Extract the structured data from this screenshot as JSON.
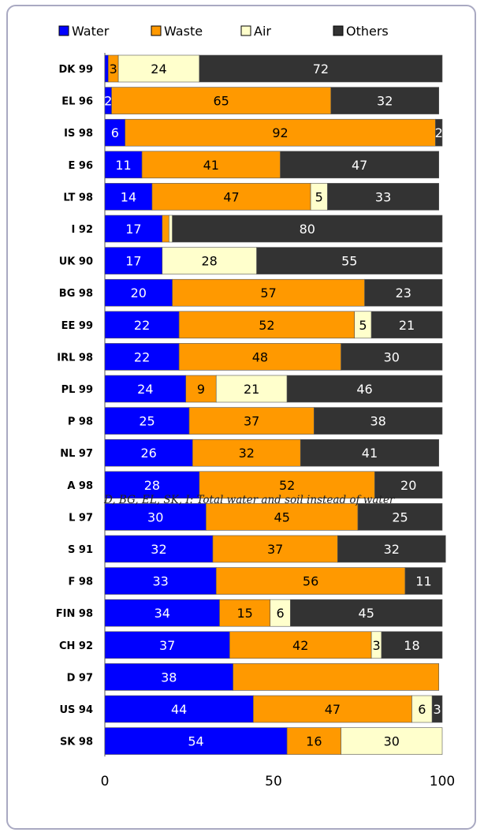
{
  "chart_data": {
    "type": "bar",
    "orientation": "horizontal",
    "stacked": true,
    "xlim": [
      0,
      100
    ],
    "xticks": [
      "0",
      "50",
      "100"
    ],
    "legend_placement": "top",
    "categories": [
      "DK 99",
      "EL 96",
      "IS 98",
      "E 96",
      "LT 98",
      "I 92",
      "UK 90",
      "BG 98",
      "EE 99",
      "IRL 98",
      "PL 99",
      "P 98",
      "NL 97",
      "A 98",
      "L 97",
      "S 91",
      "F 98",
      "FIN 98",
      "CH 92",
      "D 97",
      "US 94",
      "SK 98"
    ],
    "series": [
      {
        "name": "Water",
        "color": "#0000ff",
        "label_color": "#ffffff",
        "values": [
          1,
          2,
          6,
          11,
          14,
          17,
          17,
          20,
          22,
          22,
          24,
          25,
          26,
          28,
          30,
          32,
          33,
          34,
          37,
          38,
          44,
          54
        ],
        "labels": [
          "",
          "2",
          "6",
          "11",
          "14",
          "17",
          "17",
          "20",
          "22",
          "22",
          "24",
          "25",
          "26",
          "28",
          "30",
          "32",
          "33",
          "34",
          "37",
          "38",
          "44",
          "54"
        ]
      },
      {
        "name": "Waste",
        "color": "#ff9900",
        "label_color": "#000000",
        "values": [
          3,
          65,
          92,
          41,
          47,
          2,
          0,
          57,
          52,
          48,
          9,
          37,
          32,
          52,
          45,
          37,
          56,
          15,
          42,
          61,
          47,
          16
        ],
        "labels": [
          "3",
          "65",
          "92",
          "41",
          "47",
          "",
          "",
          "57",
          "52",
          "48",
          "9",
          "37",
          "32",
          "52",
          "45",
          "37",
          "56",
          "15",
          "42",
          "",
          "47",
          "16"
        ]
      },
      {
        "name": "Air",
        "color": "#ffffcc",
        "label_color": "#000000",
        "values": [
          24,
          0,
          0,
          0,
          5,
          1,
          28,
          0,
          5,
          0,
          21,
          0,
          0,
          0,
          0,
          0,
          0,
          6,
          3,
          0,
          6,
          30
        ],
        "labels": [
          "24",
          "",
          "",
          "",
          "5",
          "",
          "28",
          "",
          "5",
          "",
          "21",
          "",
          "",
          "",
          "",
          "",
          "",
          "6",
          "3",
          "",
          "6",
          "30"
        ]
      },
      {
        "name": "Others",
        "color": "#333333",
        "label_color": "#ffffff",
        "values": [
          72,
          32,
          2,
          47,
          33,
          80,
          55,
          23,
          21,
          30,
          46,
          38,
          41,
          20,
          25,
          32,
          11,
          45,
          18,
          0,
          3,
          0
        ],
        "labels": [
          "72",
          "32",
          "2",
          "47",
          "33",
          "80",
          "55",
          "23",
          "21",
          "30",
          "46",
          "38",
          "41",
          "20",
          "25",
          "32",
          "11",
          "45",
          "18",
          "",
          "3",
          ""
        ]
      }
    ]
  },
  "footnote": "D, BG, EL, SK, I: Total water and soil instead of water"
}
